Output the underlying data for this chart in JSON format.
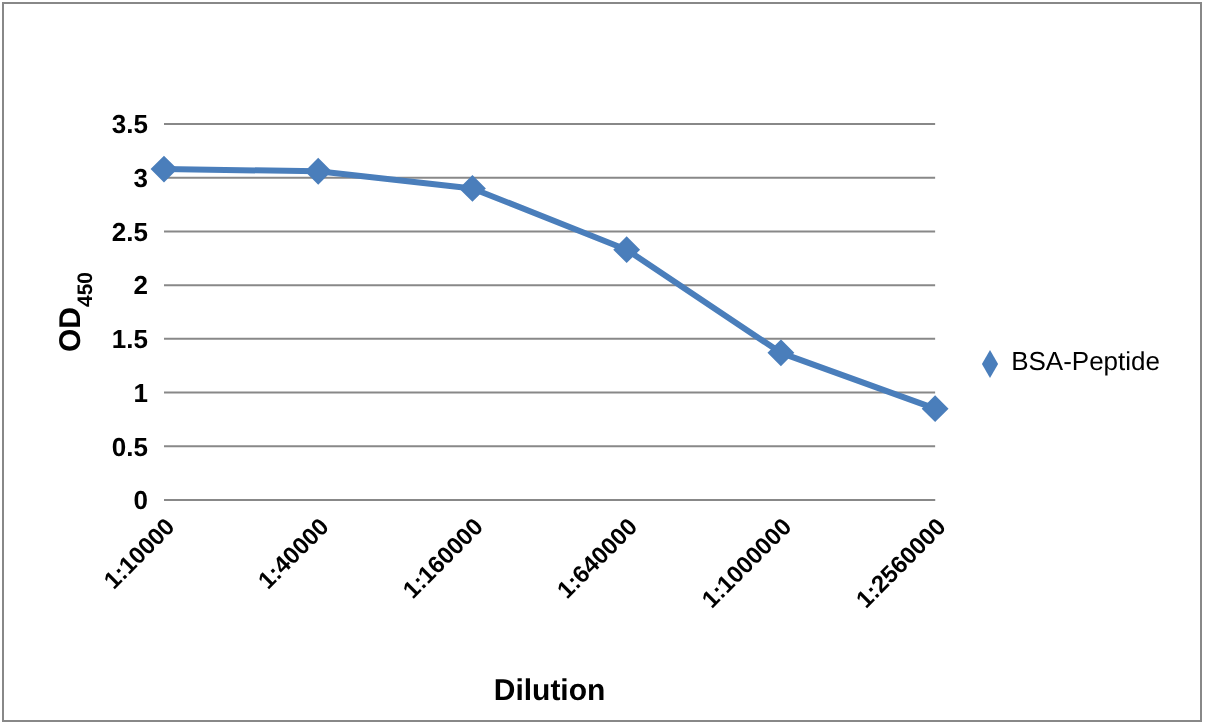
{
  "chart_data": {
    "type": "line",
    "xlabel": "Dilution",
    "ylabel": "OD$_{450}$",
    "categories": [
      "1:10000",
      "1:40000",
      "1:160000",
      "1:640000",
      "1:1000000",
      "1:2560000"
    ],
    "series": [
      {
        "name": "BSA-Peptide",
        "color": "#4a7ebb",
        "values": [
          3.08,
          3.06,
          2.9,
          2.33,
          1.37,
          0.85
        ]
      }
    ],
    "ylim": [
      0,
      3.5
    ],
    "yticks": [
      0,
      0.5,
      1,
      1.5,
      2,
      2.5,
      3,
      3.5
    ],
    "grid": "y",
    "legend": "right",
    "marker": "diamond",
    "line_style": "solid"
  }
}
